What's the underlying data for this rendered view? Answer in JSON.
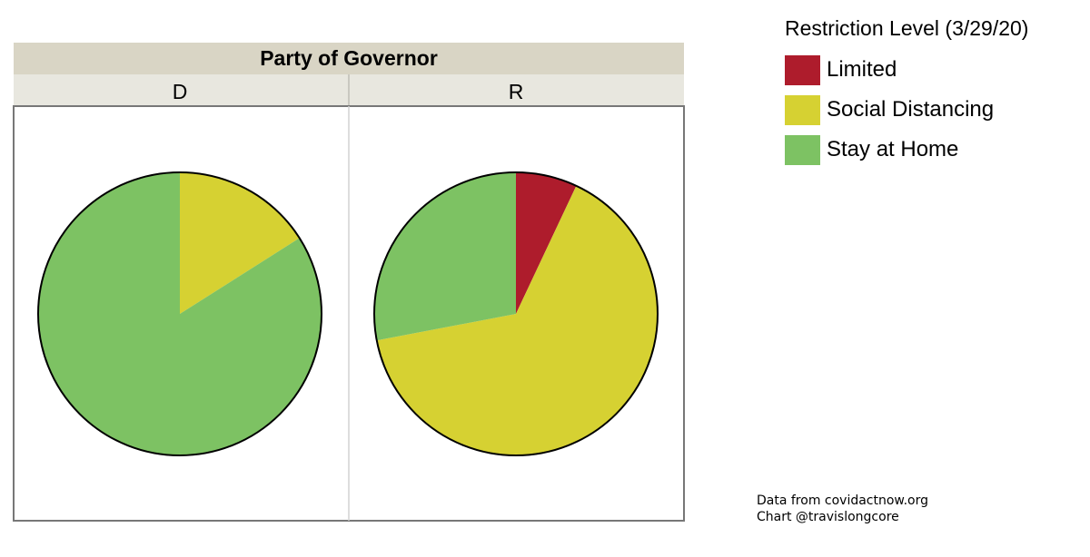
{
  "chart_data": {
    "type": "pie",
    "title": "Party of Governor",
    "facets": [
      "D",
      "R"
    ],
    "legend": {
      "title": "Restriction Level (3/29/20)",
      "placement": "top-right"
    },
    "categories": [
      "Limited",
      "Social Distancing",
      "Stay at Home"
    ],
    "colors": {
      "Limited": "#ae1c2c",
      "Social Distancing": "#d6d132",
      "Stay at Home": "#7dc263"
    },
    "series": [
      {
        "name": "D",
        "values": [
          0,
          0.16,
          0.84
        ]
      },
      {
        "name": "R",
        "values": [
          0.07,
          0.65,
          0.28
        ]
      }
    ]
  },
  "footnote": {
    "line1": "Data from covidactnow.org",
    "line2": "Chart @travislongcore"
  }
}
